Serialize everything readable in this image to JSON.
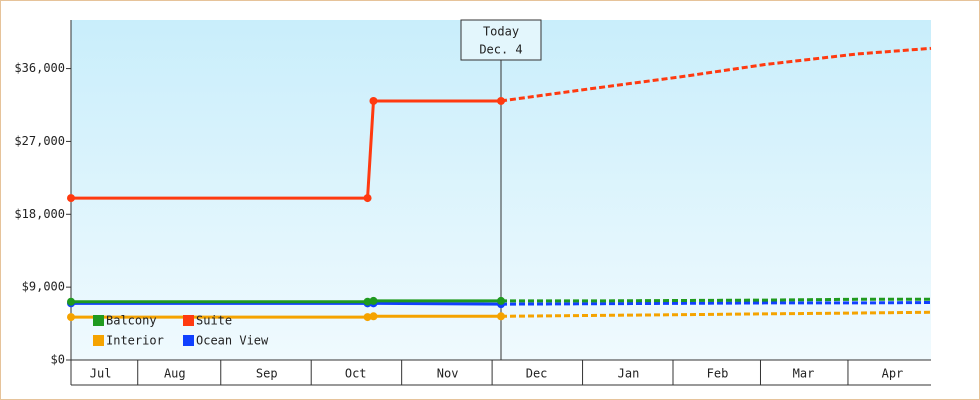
{
  "chart_data": {
    "type": "line",
    "x": [
      11,
      111,
      113,
      156,
      186,
      217,
      245,
      276,
      301
    ],
    "xlim": [
      11,
      301
    ],
    "xticks": [
      {
        "value": 21,
        "label": "Jul"
      },
      {
        "value": 46,
        "label": "Aug"
      },
      {
        "value": 77,
        "label": "Sep"
      },
      {
        "value": 107,
        "label": "Oct"
      },
      {
        "value": 138,
        "label": "Nov"
      },
      {
        "value": 168,
        "label": "Dec"
      },
      {
        "value": 199,
        "label": "Jan"
      },
      {
        "value": 229,
        "label": "Feb"
      },
      {
        "value": 258,
        "label": "Mar"
      },
      {
        "value": 288,
        "label": "Apr"
      }
    ],
    "ylim": [
      0,
      42000
    ],
    "yticks": [
      {
        "value": 0,
        "label": "$0"
      },
      {
        "value": 9000,
        "label": "$9,000"
      },
      {
        "value": 18000,
        "label": "$18,000"
      },
      {
        "value": 27000,
        "label": "$27,000"
      },
      {
        "value": 36000,
        "label": "$36,000"
      }
    ],
    "today": {
      "x": 156,
      "label": "Today",
      "date": "Dec. 4"
    },
    "series": [
      {
        "name": "Balcony",
        "color": "#1f9a1f",
        "values": [
          7200,
          7200,
          7300,
          7300,
          7300,
          7350,
          7400,
          7500,
          7500
        ]
      },
      {
        "name": "Suite",
        "color": "#ff3a10",
        "values": [
          20000,
          20000,
          32000,
          32000,
          33500,
          35000,
          36500,
          37800,
          38500
        ]
      },
      {
        "name": "Interior",
        "color": "#f5a300",
        "values": [
          5300,
          5300,
          5400,
          5400,
          5500,
          5600,
          5700,
          5800,
          5900
        ]
      },
      {
        "name": "Ocean View",
        "color": "#1040ff",
        "values": [
          7000,
          7000,
          7000,
          6900,
          6950,
          7000,
          7050,
          7050,
          7100
        ]
      }
    ]
  }
}
